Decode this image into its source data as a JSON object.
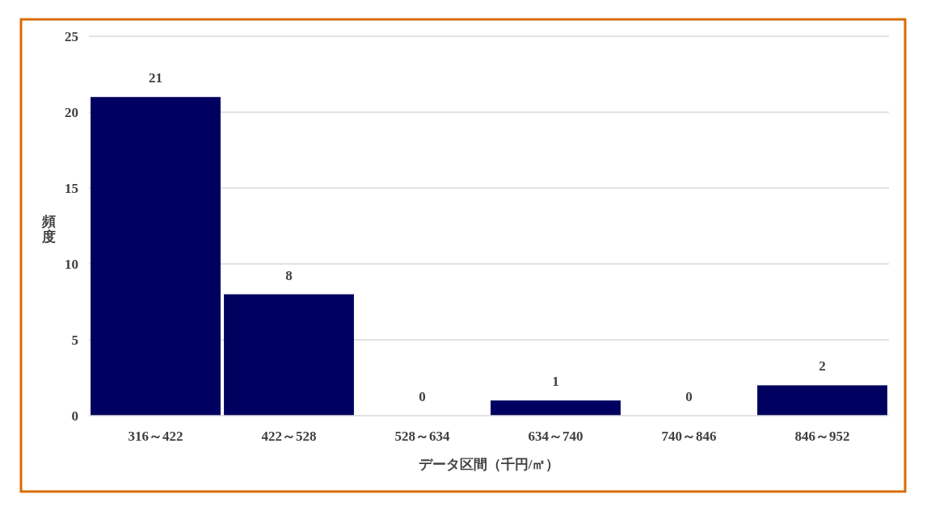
{
  "chart_data": {
    "type": "bar",
    "categories": [
      "316～422",
      "422～528",
      "528～634",
      "634～740",
      "740～846",
      "846～952"
    ],
    "values": [
      21,
      8,
      0,
      1,
      0,
      2
    ],
    "color": "#000060",
    "xlabel": "データ区間（千円/㎡）",
    "ylabel": "頻度",
    "ylim": [
      0,
      25
    ],
    "yticks": [
      0,
      5,
      10,
      15,
      20,
      25
    ],
    "grid": "y",
    "data_labels": true
  }
}
